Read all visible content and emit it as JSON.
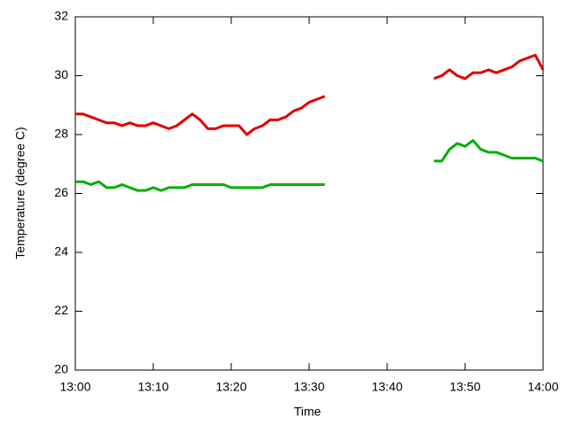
{
  "chart_data": {
    "type": "line",
    "x_label": "Time",
    "y_label": "Temperature (degree C)",
    "x": [
      "13:00",
      "13:01",
      "13:02",
      "13:03",
      "13:04",
      "13:05",
      "13:06",
      "13:07",
      "13:08",
      "13:09",
      "13:10",
      "13:11",
      "13:12",
      "13:13",
      "13:14",
      "13:15",
      "13:16",
      "13:17",
      "13:18",
      "13:19",
      "13:20",
      "13:21",
      "13:22",
      "13:23",
      "13:24",
      "13:25",
      "13:26",
      "13:27",
      "13:28",
      "13:29",
      "13:30",
      "13:31",
      "13:32",
      "13:39",
      "13:46",
      "13:47",
      "13:48",
      "13:49",
      "13:50",
      "13:51",
      "13:52",
      "13:53",
      "13:54",
      "13:55",
      "13:56",
      "13:57",
      "13:58",
      "13:59",
      "14:00"
    ],
    "series": [
      {
        "color": "#e00000",
        "values": [
          28.7,
          28.7,
          28.6,
          28.5,
          28.4,
          28.4,
          28.3,
          28.4,
          28.3,
          28.3,
          28.4,
          28.3,
          28.2,
          28.3,
          28.5,
          28.7,
          28.5,
          28.2,
          28.2,
          28.3,
          28.3,
          28.3,
          28.0,
          28.2,
          28.3,
          28.5,
          28.5,
          28.6,
          28.8,
          28.9,
          29.1,
          29.2,
          29.3,
          null,
          29.9,
          30.0,
          30.2,
          30.0,
          29.9,
          30.1,
          30.1,
          30.2,
          30.1,
          30.2,
          30.3,
          30.5,
          30.6,
          30.7,
          30.2
        ]
      },
      {
        "color": "#00b000",
        "values": [
          26.4,
          26.4,
          26.3,
          26.4,
          26.2,
          26.2,
          26.3,
          26.2,
          26.1,
          26.1,
          26.2,
          26.1,
          26.2,
          26.2,
          26.2,
          26.3,
          26.3,
          26.3,
          26.3,
          26.3,
          26.2,
          26.2,
          26.2,
          26.2,
          26.2,
          26.3,
          26.3,
          26.3,
          26.3,
          26.3,
          26.3,
          26.3,
          26.3,
          null,
          27.1,
          27.1,
          27.5,
          27.7,
          27.6,
          27.8,
          27.5,
          27.4,
          27.4,
          27.3,
          27.2,
          27.2,
          27.2,
          27.2,
          27.1
        ]
      }
    ],
    "xlim": [
      "13:00",
      "14:00"
    ],
    "xticks": [
      "13:00",
      "13:10",
      "13:20",
      "13:30",
      "13:40",
      "13:50",
      "14:00"
    ],
    "ylim": [
      20,
      32
    ],
    "yticks": [
      20,
      22,
      24,
      26,
      28,
      30,
      32
    ]
  }
}
